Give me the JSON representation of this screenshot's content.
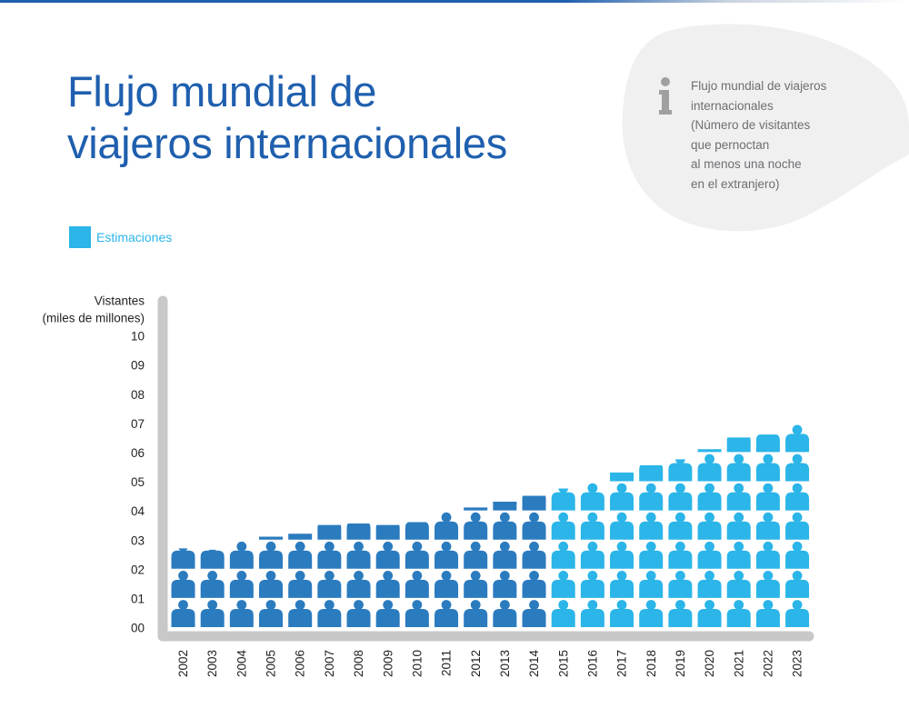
{
  "title": {
    "line1": "Flujo mundial de",
    "line2": "viajeros internacionales"
  },
  "info": {
    "icon": "info-icon",
    "lines": [
      "Flujo mundial de viajeros",
      "internacionales",
      "(Número de visitantes",
      "que pernoctan",
      "al menos una noche",
      "en el extranjero)"
    ]
  },
  "legend": {
    "label": "Estimaciones"
  },
  "colors": {
    "title": "#1f5fae",
    "actual": "#2b7bbf",
    "estimate": "#2bb5e8",
    "axis": "#c8c8c8",
    "info_blob": "#f0f0f1",
    "info_text": "#6d6e71",
    "info_icon": "#a0a0a0"
  },
  "chart_data": {
    "type": "bar",
    "ylabel_lines": [
      "Vistantes",
      "(miles de millones)"
    ],
    "ytick_labels": [
      "00",
      "01",
      "02",
      "03",
      "04",
      "05",
      "06",
      "07",
      "08",
      "09",
      "10"
    ],
    "ylim": [
      0,
      10
    ],
    "categories": [
      "2002",
      "2003",
      "2004",
      "2005",
      "2006",
      "2007",
      "2008",
      "2009",
      "2010",
      "2011",
      "2012",
      "2013",
      "2014",
      "2015",
      "2016",
      "2017",
      "2018",
      "2019",
      "2020",
      "2021",
      "2022",
      "2023"
    ],
    "values": [
      2.7,
      2.65,
      3.0,
      3.1,
      3.2,
      3.5,
      3.55,
      3.5,
      3.6,
      3.95,
      4.1,
      4.3,
      4.5,
      4.75,
      5.0,
      5.3,
      5.55,
      5.75,
      6.1,
      6.5,
      6.6,
      7.0
    ],
    "estimated_from": "2015",
    "legend": "Estimaciones",
    "icon": "person-icon"
  }
}
